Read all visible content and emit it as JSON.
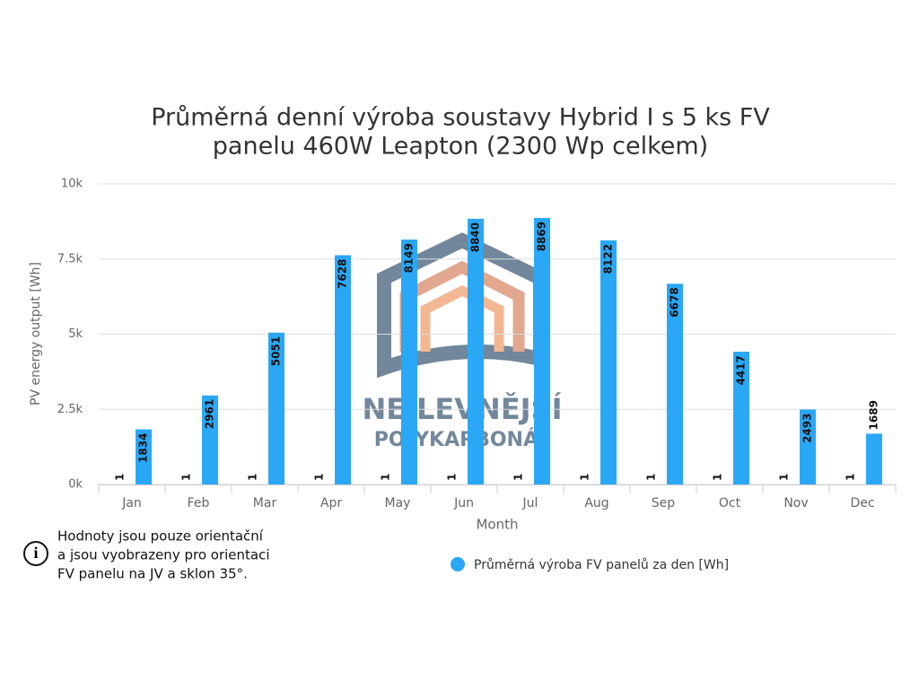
{
  "chart_data": {
    "type": "bar",
    "title": [
      "Průměrná denní výroba soustavy Hybrid I s 5 ks FV",
      "panelu 460W Leapton (2300 Wp celkem)"
    ],
    "x_label": "Month",
    "y_label": "PV energy output [Wh]",
    "categories": [
      "Jan",
      "Feb",
      "Mar",
      "Apr",
      "May",
      "Jun",
      "Jul",
      "Aug",
      "Sep",
      "Oct",
      "Nov",
      "Dec"
    ],
    "series": [
      {
        "color": "#2aa7f5",
        "values": [
          1,
          1,
          1,
          1,
          1,
          1,
          1,
          1,
          1,
          1,
          1,
          1
        ]
      },
      {
        "name": "Průměrná výroba FV panelů za den [Wh]",
        "color": "#2aa7f5",
        "values": [
          1834,
          2961,
          5051,
          7628,
          8149,
          8840,
          8869,
          8122,
          6678,
          4417,
          2493,
          1689
        ]
      }
    ],
    "ylim": [
      0,
      10000
    ],
    "yticks": [
      {
        "value": 0,
        "label": "0k"
      },
      {
        "value": 2500,
        "label": "2.5k"
      },
      {
        "value": 5000,
        "label": "5k"
      },
      {
        "value": 7500,
        "label": "7.5k"
      },
      {
        "value": 10000,
        "label": "10k"
      }
    ],
    "grid": true
  },
  "note": [
    "Hodnoty jsou pouze orientační",
    "a jsou vyobrazeny pro orientaci",
    "FV panelu na JV a sklon 35°."
  ],
  "watermark": [
    "NEJLEVNĚJŠÍ",
    "POLYKARBONÁT"
  ]
}
